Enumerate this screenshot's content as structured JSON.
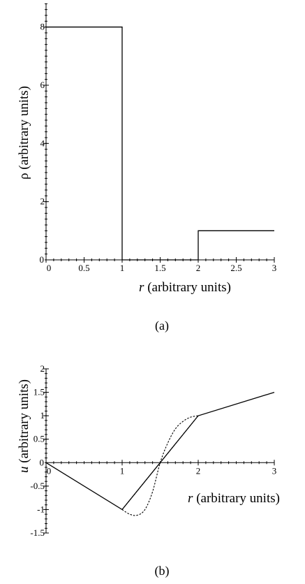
{
  "chart_data": [
    {
      "type": "line",
      "caption": "(a)",
      "xlabel_symbol": "r",
      "xlabel_rest": " (arbitrary units)",
      "ylabel_symbol": "ρ",
      "ylabel_rest": " (arbitrary units)",
      "xlim": [
        0,
        3
      ],
      "ylim": [
        0,
        9
      ],
      "xticks": [
        0,
        0.5,
        1,
        1.5,
        2,
        2.5,
        3
      ],
      "xtick_labels": [
        "0",
        "0.5",
        "1",
        "1.5",
        "2",
        "2.5",
        "3"
      ],
      "yticks": [
        2,
        4,
        6,
        8
      ],
      "ytick_labels": [
        "2",
        "4",
        "6",
        "8"
      ],
      "origin_y_label": "0",
      "grid": false,
      "series": [
        {
          "style": "solid",
          "x": [
            0,
            1,
            1,
            2,
            2,
            3
          ],
          "y": [
            8,
            8,
            0,
            0,
            1,
            1
          ]
        }
      ]
    },
    {
      "type": "line",
      "caption": "(b)",
      "xlabel_symbol": "r",
      "xlabel_rest": " (arbitrary units)",
      "ylabel_symbol": "u",
      "ylabel_rest": " (arbitrary units)",
      "xlim": [
        0,
        3
      ],
      "ylim": [
        -1.5,
        2
      ],
      "xticks": [
        0,
        1,
        2,
        3
      ],
      "xtick_labels": [
        "0",
        "1",
        "2",
        "3"
      ],
      "yticks": [
        -1.5,
        -1,
        -0.5,
        0.5,
        1,
        1.5,
        2
      ],
      "ytick_labels": [
        "-1.5",
        "-1",
        "-0.5",
        "0.5",
        "1",
        "1.5",
        "2"
      ],
      "origin_y_label": "0",
      "grid": false,
      "series": [
        {
          "style": "solid",
          "x": [
            0,
            1,
            2,
            3
          ],
          "y": [
            0,
            -1,
            1,
            1.5
          ]
        },
        {
          "style": "dotted",
          "x": [
            1,
            2
          ],
          "y": [
            -1,
            1
          ]
        },
        {
          "style": "dotted",
          "x": [
            1,
            1.1,
            1.2,
            1.3,
            1.4,
            1.5,
            1.6,
            1.7,
            1.8,
            1.9,
            2
          ],
          "y": [
            -1,
            -1.1,
            -1.12,
            -1.0,
            -0.62,
            0,
            0.42,
            0.72,
            0.88,
            0.97,
            1
          ]
        }
      ]
    }
  ]
}
